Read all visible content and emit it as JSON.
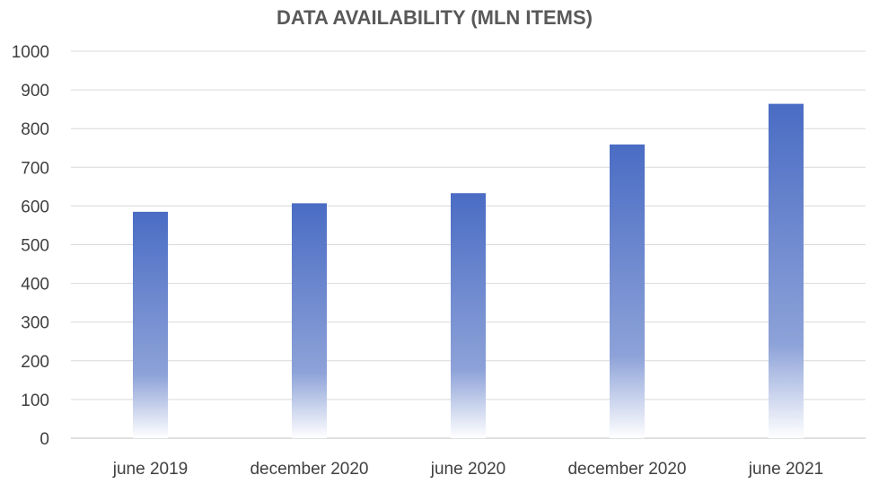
{
  "chart_data": {
    "type": "bar",
    "title": "DATA AVAILABILITY (MLN ITEMS)",
    "xlabel": "",
    "ylabel": "",
    "categories": [
      "june 2019",
      "december 2020",
      "june 2020",
      "december 2020",
      "june 2021"
    ],
    "values": [
      585,
      607,
      633,
      759,
      864
    ],
    "ylim": [
      0,
      1000
    ],
    "yticks": [
      0,
      100,
      200,
      300,
      400,
      500,
      600,
      700,
      800,
      900,
      1000
    ],
    "grid": true,
    "legend": "none",
    "colors": {
      "bar_top": "#4A6CC4",
      "bar_mid": "#8DA2D8",
      "bar_bottom": "#FFFFFF",
      "grid": "#D9D9D9",
      "title": "#595959",
      "text": "#404040"
    }
  }
}
